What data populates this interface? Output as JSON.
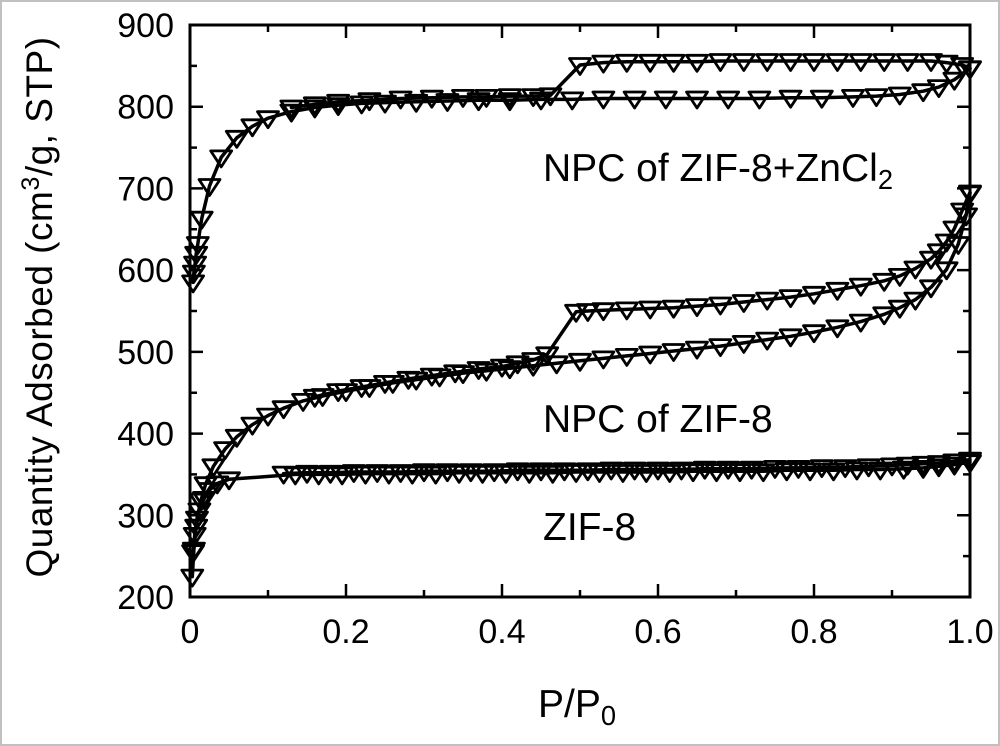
{
  "figure": {
    "background_color": "#ffffff",
    "ink_color": "#000000"
  },
  "labels": {
    "ylabel_prefix": "Quantity Adsorbed (cm",
    "ylabel_sup": "3",
    "ylabel_suffix": "/g, STP)",
    "xlabel_main": "P/P",
    "xlabel_sub": "0"
  },
  "chart_data": {
    "type": "line",
    "title": "",
    "xlabel": "P/P0",
    "ylabel": "Quantity Adsorbed (cm3/g, STP)",
    "xlim": [
      0,
      1.0
    ],
    "ylim": [
      200,
      900
    ],
    "grid": false,
    "legend_position": "none (curves identified by in-plot text annotations)",
    "marker_style": "open downward triangle",
    "x_axis": {
      "major": [
        0,
        0.2,
        0.4,
        0.6,
        0.8,
        1.0
      ],
      "labels": [
        "0",
        "0.2",
        "0.4",
        "0.6",
        "0.8",
        "1.0"
      ],
      "minor": [
        0.1,
        0.3,
        0.5,
        0.7,
        0.9
      ]
    },
    "y_axis": {
      "major": [
        200,
        300,
        400,
        500,
        600,
        700,
        800,
        900
      ],
      "labels": [
        "200",
        "300",
        "400",
        "500",
        "600",
        "700",
        "800",
        "900"
      ],
      "minor": [
        250,
        350,
        450,
        550,
        650,
        750,
        850
      ]
    },
    "annotations": [
      {
        "text": "NPC of ZIF-8+ZnCl",
        "sub": "2"
      },
      {
        "text": "NPC of ZIF-8",
        "sub": ""
      },
      {
        "text": "ZIF-8",
        "sub": ""
      }
    ],
    "series": [
      {
        "id": "npc-zif8-zncl2-adsorption",
        "sample": "NPC of ZIF-8+ZnCl2",
        "branch": "adsorption",
        "points": [
          [
            0.004,
            585
          ],
          [
            0.005,
            597
          ],
          [
            0.0065,
            608
          ],
          [
            0.008,
            620
          ],
          [
            0.01,
            632
          ],
          [
            0.015,
            663
          ],
          [
            0.025,
            703
          ],
          [
            0.04,
            738
          ],
          [
            0.06,
            762
          ],
          [
            0.08,
            776
          ],
          [
            0.1,
            786
          ],
          [
            0.13,
            794
          ],
          [
            0.16,
            799
          ],
          [
            0.19,
            802
          ],
          [
            0.22,
            804
          ],
          [
            0.25,
            805
          ],
          [
            0.29,
            806
          ],
          [
            0.33,
            807
          ],
          [
            0.37,
            808
          ],
          [
            0.41,
            808
          ],
          [
            0.45,
            809
          ],
          [
            0.49,
            809
          ],
          [
            0.53,
            810
          ],
          [
            0.57,
            810
          ],
          [
            0.61,
            810
          ],
          [
            0.65,
            810
          ],
          [
            0.69,
            810
          ],
          [
            0.73,
            810
          ],
          [
            0.77,
            811
          ],
          [
            0.81,
            811
          ],
          [
            0.85,
            812
          ],
          [
            0.88,
            813
          ],
          [
            0.91,
            815
          ],
          [
            0.94,
            819
          ],
          [
            0.96,
            824
          ],
          [
            0.98,
            833
          ],
          [
            1.0,
            847
          ]
        ]
      },
      {
        "id": "npc-zif8-zncl2-desorption",
        "sample": "NPC of ZIF-8+ZnCl2",
        "branch": "desorption",
        "points": [
          [
            1.0,
            847
          ],
          [
            0.99,
            851
          ],
          [
            0.97,
            854
          ],
          [
            0.95,
            856
          ],
          [
            0.92,
            856
          ],
          [
            0.89,
            856
          ],
          [
            0.86,
            856
          ],
          [
            0.83,
            856
          ],
          [
            0.8,
            856
          ],
          [
            0.77,
            856
          ],
          [
            0.74,
            856
          ],
          [
            0.71,
            856
          ],
          [
            0.68,
            856
          ],
          [
            0.65,
            855
          ],
          [
            0.62,
            855
          ],
          [
            0.59,
            855
          ],
          [
            0.56,
            855
          ],
          [
            0.53,
            854
          ],
          [
            0.5,
            851
          ],
          [
            0.462,
            814
          ],
          [
            0.44,
            813
          ],
          [
            0.41,
            813
          ],
          [
            0.38,
            812
          ],
          [
            0.35,
            812
          ],
          [
            0.31,
            811
          ],
          [
            0.27,
            810
          ],
          [
            0.23,
            808
          ],
          [
            0.19,
            806
          ],
          [
            0.16,
            803
          ],
          [
            0.13,
            799
          ]
        ]
      },
      {
        "id": "npc-zif8-adsorption",
        "sample": "NPC of ZIF-8",
        "branch": "adsorption",
        "points": [
          [
            0.004,
            255
          ],
          [
            0.006,
            276
          ],
          [
            0.009,
            296
          ],
          [
            0.014,
            318
          ],
          [
            0.02,
            338
          ],
          [
            0.03,
            360
          ],
          [
            0.045,
            381
          ],
          [
            0.06,
            396
          ],
          [
            0.08,
            411
          ],
          [
            0.1,
            422
          ],
          [
            0.12,
            431
          ],
          [
            0.145,
            440
          ],
          [
            0.17,
            446
          ],
          [
            0.2,
            452
          ],
          [
            0.23,
            457
          ],
          [
            0.26,
            462
          ],
          [
            0.29,
            466
          ],
          [
            0.32,
            470
          ],
          [
            0.35,
            474
          ],
          [
            0.38,
            477
          ],
          [
            0.41,
            480
          ],
          [
            0.44,
            483
          ],
          [
            0.47,
            486
          ],
          [
            0.5,
            489
          ],
          [
            0.53,
            492
          ],
          [
            0.56,
            495
          ],
          [
            0.59,
            498
          ],
          [
            0.62,
            501
          ],
          [
            0.65,
            504
          ],
          [
            0.68,
            507
          ],
          [
            0.71,
            511
          ],
          [
            0.74,
            515
          ],
          [
            0.77,
            519
          ],
          [
            0.8,
            524
          ],
          [
            0.83,
            530
          ],
          [
            0.86,
            537
          ],
          [
            0.89,
            546
          ],
          [
            0.91,
            554
          ],
          [
            0.93,
            564
          ],
          [
            0.95,
            579
          ],
          [
            0.97,
            601
          ],
          [
            0.985,
            632
          ],
          [
            0.995,
            667
          ],
          [
            1.0,
            694
          ]
        ]
      },
      {
        "id": "npc-zif8-desorption",
        "sample": "NPC of ZIF-8",
        "branch": "desorption",
        "points": [
          [
            1.0,
            695
          ],
          [
            0.99,
            673
          ],
          [
            0.98,
            651
          ],
          [
            0.97,
            635
          ],
          [
            0.96,
            623
          ],
          [
            0.95,
            614
          ],
          [
            0.93,
            602
          ],
          [
            0.91,
            593
          ],
          [
            0.89,
            587
          ],
          [
            0.86,
            581
          ],
          [
            0.83,
            576
          ],
          [
            0.8,
            571
          ],
          [
            0.77,
            567
          ],
          [
            0.74,
            564
          ],
          [
            0.71,
            561
          ],
          [
            0.68,
            558
          ],
          [
            0.65,
            556
          ],
          [
            0.62,
            554
          ],
          [
            0.59,
            553
          ],
          [
            0.56,
            552
          ],
          [
            0.53,
            551
          ],
          [
            0.51,
            550
          ],
          [
            0.495,
            549
          ],
          [
            0.458,
            497
          ],
          [
            0.44,
            490
          ],
          [
            0.42,
            486
          ],
          [
            0.4,
            482
          ],
          [
            0.37,
            479
          ],
          [
            0.34,
            475
          ],
          [
            0.31,
            471
          ],
          [
            0.28,
            467
          ],
          [
            0.25,
            462
          ],
          [
            0.22,
            457
          ],
          [
            0.19,
            452
          ],
          [
            0.16,
            445
          ]
        ]
      },
      {
        "id": "zif8-adsorption",
        "sample": "ZIF-8",
        "branch": "adsorption",
        "points": [
          [
            0.003,
            225
          ],
          [
            0.005,
            258
          ],
          [
            0.008,
            286
          ],
          [
            0.012,
            306
          ],
          [
            0.018,
            320
          ],
          [
            0.025,
            331
          ],
          [
            0.035,
            339
          ],
          [
            0.05,
            344
          ],
          [
            0.135,
            350
          ],
          [
            0.165,
            350
          ],
          [
            0.195,
            350
          ],
          [
            0.225,
            351
          ],
          [
            0.255,
            351
          ],
          [
            0.285,
            351
          ],
          [
            0.315,
            351
          ],
          [
            0.345,
            352
          ],
          [
            0.375,
            352
          ],
          [
            0.405,
            352
          ],
          [
            0.435,
            352
          ],
          [
            0.465,
            352
          ],
          [
            0.495,
            353
          ],
          [
            0.525,
            353
          ],
          [
            0.555,
            353
          ],
          [
            0.585,
            353
          ],
          [
            0.615,
            353
          ],
          [
            0.645,
            354
          ],
          [
            0.675,
            354
          ],
          [
            0.705,
            354
          ],
          [
            0.735,
            354
          ],
          [
            0.765,
            355
          ],
          [
            0.795,
            355
          ],
          [
            0.825,
            355
          ],
          [
            0.855,
            356
          ],
          [
            0.885,
            356
          ],
          [
            0.915,
            357
          ],
          [
            0.94,
            358
          ],
          [
            0.96,
            360
          ],
          [
            0.98,
            362
          ],
          [
            1.0,
            365
          ]
        ]
      },
      {
        "id": "zif8-desorption",
        "sample": "ZIF-8",
        "branch": "desorption",
        "points": [
          [
            1.0,
            368
          ],
          [
            0.98,
            366
          ],
          [
            0.96,
            364
          ],
          [
            0.94,
            363
          ],
          [
            0.92,
            362
          ],
          [
            0.9,
            361
          ],
          [
            0.87,
            360
          ],
          [
            0.84,
            359
          ],
          [
            0.81,
            359
          ],
          [
            0.78,
            358
          ],
          [
            0.75,
            358
          ],
          [
            0.72,
            357
          ],
          [
            0.69,
            357
          ],
          [
            0.66,
            357
          ],
          [
            0.63,
            356
          ],
          [
            0.6,
            356
          ],
          [
            0.57,
            356
          ],
          [
            0.54,
            356
          ],
          [
            0.51,
            355
          ],
          [
            0.48,
            355
          ],
          [
            0.45,
            355
          ],
          [
            0.42,
            355
          ],
          [
            0.39,
            354
          ],
          [
            0.36,
            354
          ],
          [
            0.33,
            354
          ],
          [
            0.3,
            354
          ],
          [
            0.27,
            353
          ],
          [
            0.24,
            353
          ],
          [
            0.21,
            353
          ],
          [
            0.18,
            352
          ],
          [
            0.15,
            352
          ],
          [
            0.12,
            351
          ]
        ]
      }
    ]
  }
}
